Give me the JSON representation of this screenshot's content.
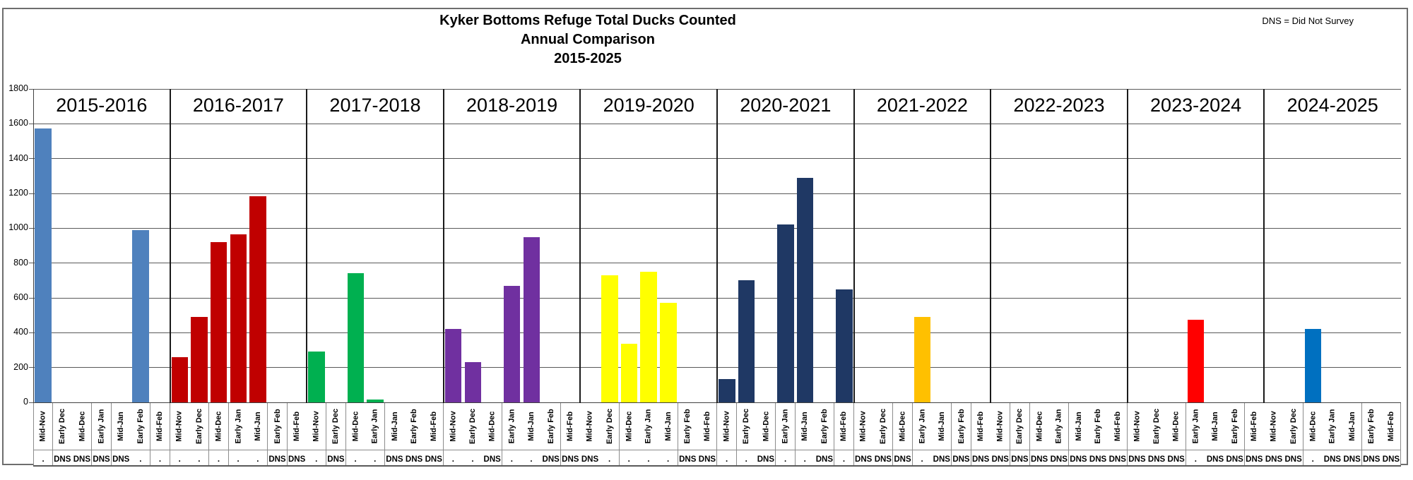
{
  "title": {
    "line1": "Kyker Bottoms Refuge Total Ducks Counted",
    "line2": "Annual Comparison",
    "line3": "2015-2025"
  },
  "note": "DNS = Did Not Survey",
  "chart_data": {
    "type": "bar",
    "title": "Kyker Bottoms Refuge Total Ducks Counted Annual Comparison 2015-2025",
    "ylabel": "",
    "xlabel": "",
    "ylim": [
      0,
      1800
    ],
    "ytick_interval": 200,
    "yticks": [
      0,
      200,
      400,
      600,
      800,
      1000,
      1200,
      1400,
      1600,
      1800
    ],
    "grid": "horizontal",
    "legend_position": "none",
    "dns_label": "DNS",
    "surveyed_label": ".",
    "periods": [
      "Mid-Nov",
      "Early Dec",
      "Mid-Dec",
      "Early Jan",
      "Mid-Jan",
      "Early Feb",
      "Mid-Feb"
    ],
    "groups": [
      {
        "label": "2015-2016",
        "color": "#4F81BD",
        "values": [
          1575,
          null,
          null,
          null,
          null,
          990,
          0
        ],
        "status": [
          ".",
          "DNS",
          "DNS",
          "DNS",
          "DNS",
          ".",
          "."
        ]
      },
      {
        "label": "2016-2017",
        "color": "#C00000",
        "values": [
          260,
          490,
          920,
          965,
          1185,
          null,
          null
        ],
        "status": [
          ".",
          ".",
          ".",
          ".",
          ".",
          "DNS",
          "DNS"
        ]
      },
      {
        "label": "2017-2018",
        "color": "#00B050",
        "values": [
          290,
          null,
          740,
          15,
          null,
          null,
          null
        ],
        "status": [
          ".",
          "DNS",
          ".",
          ".",
          "DNS",
          "DNS",
          "DNS"
        ]
      },
      {
        "label": "2018-2019",
        "color": "#7030A0",
        "values": [
          420,
          230,
          null,
          670,
          950,
          null,
          null
        ],
        "status": [
          ".",
          ".",
          "DNS",
          ".",
          ".",
          "DNS",
          "DNS"
        ]
      },
      {
        "label": "2019-2020",
        "color": "#FFFF00",
        "values": [
          null,
          730,
          335,
          750,
          570,
          null,
          null
        ],
        "status": [
          "DNS",
          ".",
          ".",
          ".",
          ".",
          "DNS",
          "DNS"
        ]
      },
      {
        "label": "2020-2021",
        "color": "#1F3864",
        "values": [
          135,
          700,
          null,
          1020,
          1290,
          null,
          650
        ],
        "status": [
          ".",
          ".",
          "DNS",
          ".",
          ".",
          "DNS",
          "."
        ]
      },
      {
        "label": "2021-2022",
        "color": "#FFC000",
        "values": [
          null,
          null,
          null,
          490,
          null,
          null,
          null
        ],
        "status": [
          "DNS",
          "DNS",
          "DNS",
          ".",
          "DNS",
          "DNS",
          "DNS"
        ]
      },
      {
        "label": "2022-2023",
        "color": "#A6A6A6",
        "values": [
          null,
          null,
          null,
          null,
          null,
          null,
          null
        ],
        "status": [
          "DNS",
          "DNS",
          "DNS",
          "DNS",
          "DNS",
          "DNS",
          "DNS"
        ]
      },
      {
        "label": "2023-2024",
        "color": "#FF0000",
        "values": [
          null,
          null,
          null,
          475,
          null,
          null,
          null
        ],
        "status": [
          "DNS",
          "DNS",
          "DNS",
          ".",
          "DNS",
          "DNS",
          "DNS"
        ]
      },
      {
        "label": "2024-2025",
        "color": "#0070C0",
        "values": [
          null,
          null,
          420,
          null,
          null,
          null,
          null
        ],
        "status": [
          "DNS",
          "DNS",
          ".",
          "DNS",
          "DNS",
          "DNS",
          "DNS"
        ]
      }
    ]
  }
}
